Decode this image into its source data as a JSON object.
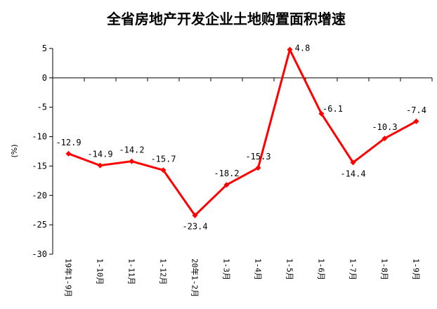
{
  "chart_data": {
    "type": "line",
    "title": "全省房地产开发企业土地购置面积增速",
    "ylabel": "(%)",
    "xlabel": "",
    "categories": [
      "19年1-9月",
      "1-10月",
      "1-11月",
      "1-12月",
      "20年1-2月",
      "1-3月",
      "1-4月",
      "1-5月",
      "1-6月",
      "1-7月",
      "1-8月",
      "1-9月"
    ],
    "values": [
      -12.9,
      -14.9,
      -14.2,
      -15.7,
      -23.4,
      -18.2,
      -15.3,
      4.8,
      -6.1,
      -14.4,
      -10.3,
      -7.4
    ],
    "data_labels": [
      "-12.9",
      "-14.9",
      "-14.2",
      "-15.7",
      "-23.4",
      "-18.2",
      "-15.3",
      "4.8",
      "-6.1",
      "-14.4",
      "-10.3",
      "-7.4"
    ],
    "yticks": [
      "5",
      "0",
      "-5",
      "-10",
      "-15",
      "-20",
      "-25",
      "-30"
    ],
    "ylim": [
      -30,
      5
    ],
    "grid": false,
    "series_color": "#ff0000"
  }
}
